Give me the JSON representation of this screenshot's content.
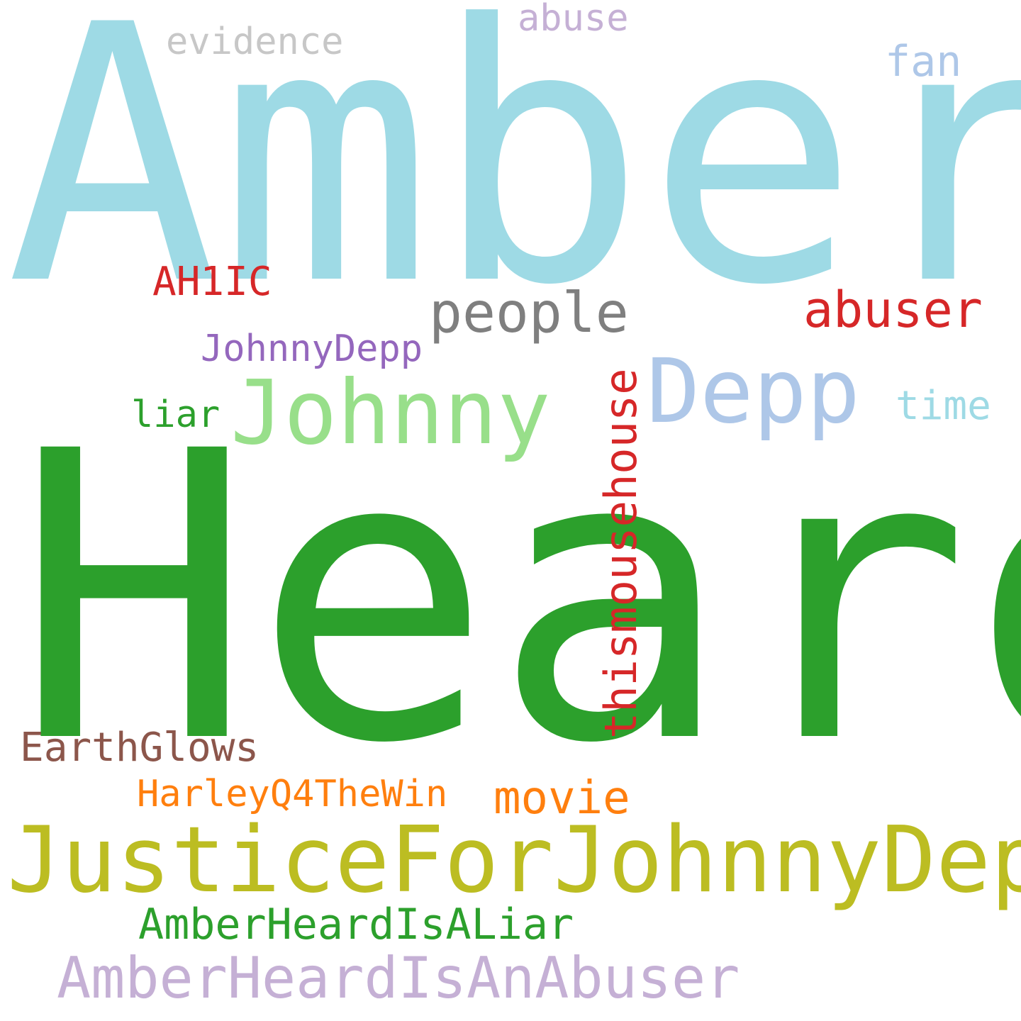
{
  "words": {
    "amber": {
      "text": "Amber",
      "color": "#9edae5"
    },
    "heard": {
      "text": "Heard",
      "color": "#2ca02c"
    },
    "justicefor": {
      "text": "JusticeForJohnnyDepp",
      "color": "#bcbd22"
    },
    "johnny": {
      "text": "Johnny",
      "color": "#98df8a"
    },
    "depp": {
      "text": "Depp",
      "color": "#aec7e8"
    },
    "people": {
      "text": "people",
      "color": "#7f7f7f"
    },
    "abuser": {
      "text": "abuser",
      "color": "#d62728"
    },
    "ah1ic": {
      "text": "AH1IC",
      "color": "#d62728"
    },
    "johnnydepp": {
      "text": "JohnnyDepp",
      "color": "#9467bd"
    },
    "liar": {
      "text": "liar",
      "color": "#2ca02c"
    },
    "time": {
      "text": "time",
      "color": "#9edae5"
    },
    "fan": {
      "text": "fan",
      "color": "#aec7e8"
    },
    "abuse": {
      "text": "abuse",
      "color": "#c5b0d5"
    },
    "evidence": {
      "text": "evidence",
      "color": "#c7c7c7"
    },
    "thismousehouse": {
      "text": "thismousehouse",
      "color": "#d62728"
    },
    "earthglows": {
      "text": "EarthGlows",
      "color": "#8c564b"
    },
    "harley": {
      "text": "HarleyQ4TheWin",
      "color": "#ff7f0e"
    },
    "movie": {
      "text": "movie",
      "color": "#ff7f0e"
    },
    "isaliar": {
      "text": "AmberHeardIsALiar",
      "color": "#2ca02c"
    },
    "isanabuser": {
      "text": "AmberHeardIsAnAbuser",
      "color": "#c5b0d5"
    }
  }
}
